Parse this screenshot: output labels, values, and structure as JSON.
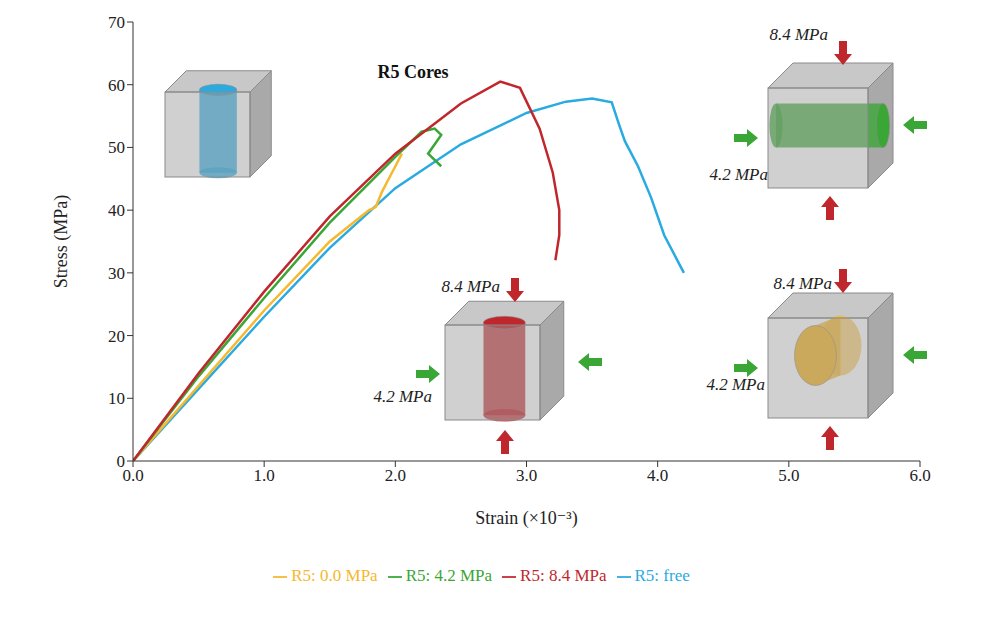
{
  "chart_data": {
    "type": "line",
    "title": "R5 Cores",
    "x_label": "Strain (×10⁻³)",
    "y_label": "Stress (MPa)",
    "xlim": [
      0,
      6
    ],
    "xticks": [
      {
        "value": 0,
        "label": "0.0"
      },
      {
        "value": 1,
        "label": "1.0"
      },
      {
        "value": 2,
        "label": "2.0"
      },
      {
        "value": 3,
        "label": "3.0"
      },
      {
        "value": 4,
        "label": "4.0"
      },
      {
        "value": 5,
        "label": "5.0"
      },
      {
        "value": 6,
        "label": "6.0"
      }
    ],
    "ylim": [
      0,
      70
    ],
    "yticks": [
      0,
      10,
      20,
      30,
      40,
      50,
      60,
      70
    ],
    "grid": false,
    "legend": "bottom",
    "annotations": [
      "8.4 MPa",
      "4.2 MPa",
      "8.4 MPa",
      "4.2 MPa",
      "8.4 MPa",
      "4.2 MPa"
    ],
    "series": [
      {
        "name": "R5: free",
        "color": "#29abe2",
        "x": [
          0,
          0.5,
          1,
          1.5,
          2,
          2.5,
          3,
          3.3,
          3.5,
          3.65,
          3.7,
          3.75,
          3.85,
          3.95,
          4.05,
          4.15,
          4.2
        ],
        "values": [
          0,
          11.5,
          23,
          34,
          43.5,
          50.5,
          55.5,
          57.3,
          57.8,
          57.2,
          54,
          51,
          47,
          42,
          36,
          32,
          30
        ]
      },
      {
        "name": "R5: 0.0 MPa",
        "color": "#f5b82e",
        "x": [
          0,
          0.5,
          1,
          1.5,
          1.8,
          1.85,
          1.9,
          1.95,
          2,
          2.05
        ],
        "values": [
          0,
          12,
          24,
          35,
          40,
          40.5,
          43,
          45,
          47,
          49
        ]
      },
      {
        "name": "R5: 4.2 MPa",
        "color": "#3aa636",
        "x": [
          0,
          0.5,
          1,
          1.5,
          2,
          2.2,
          2.3,
          2.35,
          2.25,
          2.35
        ],
        "values": [
          0,
          13.5,
          26,
          38,
          48.5,
          52.5,
          53,
          52,
          49,
          47
        ]
      },
      {
        "name": "R5: 8.4 MPa",
        "color": "#c0272d",
        "x": [
          0,
          0.5,
          1,
          1.5,
          2,
          2.5,
          2.8,
          2.95,
          3.1,
          3.2,
          3.25,
          3.25,
          3.22
        ],
        "values": [
          0,
          14,
          27,
          39,
          49,
          57,
          60.5,
          59.5,
          53,
          46,
          40,
          36,
          32
        ]
      }
    ]
  }
}
